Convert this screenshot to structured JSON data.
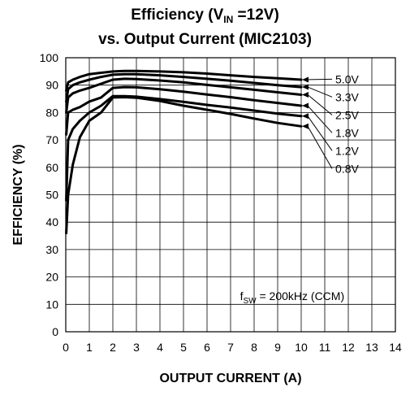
{
  "chart_data": {
    "type": "line",
    "title_line1_prefix": "Efficiency (V",
    "title_line1_sub": "IN",
    "title_line1_suffix": " =12V)",
    "title_line2": "vs. Output Current (MIC2103)",
    "xlabel": "OUTPUT CURRENT (A)",
    "ylabel": "EFFICIENCY (%)",
    "xlim": [
      0,
      14
    ],
    "ylim": [
      0,
      100
    ],
    "xticks": [
      0,
      1,
      2,
      3,
      4,
      5,
      6,
      7,
      8,
      9,
      10,
      11,
      12,
      13,
      14
    ],
    "yticks": [
      0,
      10,
      20,
      30,
      40,
      50,
      60,
      70,
      80,
      90,
      100
    ],
    "grid": true,
    "annotation": {
      "prefix": "f",
      "sub": "SW",
      "text": " = 200kHz (CCM)"
    },
    "series": [
      {
        "name": "5.0V",
        "x": [
          0.02,
          0.1,
          0.3,
          0.6,
          1,
          1.5,
          2,
          2.5,
          3,
          4,
          5,
          6,
          7,
          8,
          9,
          10
        ],
        "y": [
          88,
          91,
          92,
          93,
          94,
          94.5,
          95,
          95.2,
          95.2,
          95,
          94.7,
          94.2,
          93.6,
          93,
          92.5,
          92
        ]
      },
      {
        "name": "3.3V",
        "x": [
          0.02,
          0.1,
          0.3,
          0.6,
          1,
          1.5,
          2,
          2.5,
          3,
          4,
          5,
          6,
          7,
          8,
          9,
          10
        ],
        "y": [
          84,
          88.5,
          90,
          91,
          92,
          93,
          93.8,
          94,
          94,
          93.6,
          93,
          92.3,
          91.6,
          90.8,
          90,
          89.3
        ]
      },
      {
        "name": "2.5V",
        "x": [
          0.02,
          0.1,
          0.3,
          0.6,
          1,
          1.5,
          2,
          2.5,
          3,
          4,
          5,
          6,
          7,
          8,
          9,
          10
        ],
        "y": [
          80,
          85.5,
          87,
          88,
          89,
          90.5,
          92,
          92.3,
          92.2,
          91.7,
          91,
          90.1,
          89.2,
          88.3,
          87.4,
          86.5
        ]
      },
      {
        "name": "1.8V",
        "x": [
          0.02,
          0.1,
          0.3,
          0.6,
          1,
          1.5,
          2,
          2.5,
          3,
          4,
          5,
          6,
          7,
          8,
          9,
          10
        ],
        "y": [
          72,
          80,
          81,
          82,
          84,
          85.5,
          89,
          89.3,
          89.2,
          88.5,
          87.6,
          86.6,
          85.6,
          84.5,
          83.5,
          82.5
        ]
      },
      {
        "name": "1.2V",
        "x": [
          0.02,
          0.1,
          0.3,
          0.6,
          1,
          1.5,
          2,
          2.5,
          3,
          4,
          5,
          6,
          7,
          8,
          9,
          10
        ],
        "y": [
          48,
          70,
          74,
          77,
          80,
          82.5,
          86,
          86,
          85.8,
          84.9,
          83.9,
          82.8,
          81.8,
          80.7,
          79.6,
          78.7
        ]
      },
      {
        "name": "0.8V",
        "x": [
          0.02,
          0.1,
          0.3,
          0.6,
          1,
          1.5,
          2,
          2.5,
          3,
          4,
          5,
          6,
          7,
          8,
          9,
          10
        ],
        "y": [
          36,
          50,
          61,
          71,
          77,
          80,
          85.5,
          85.6,
          85.4,
          84.2,
          82.5,
          81,
          79.5,
          77.8,
          76.2,
          75
        ]
      }
    ]
  }
}
